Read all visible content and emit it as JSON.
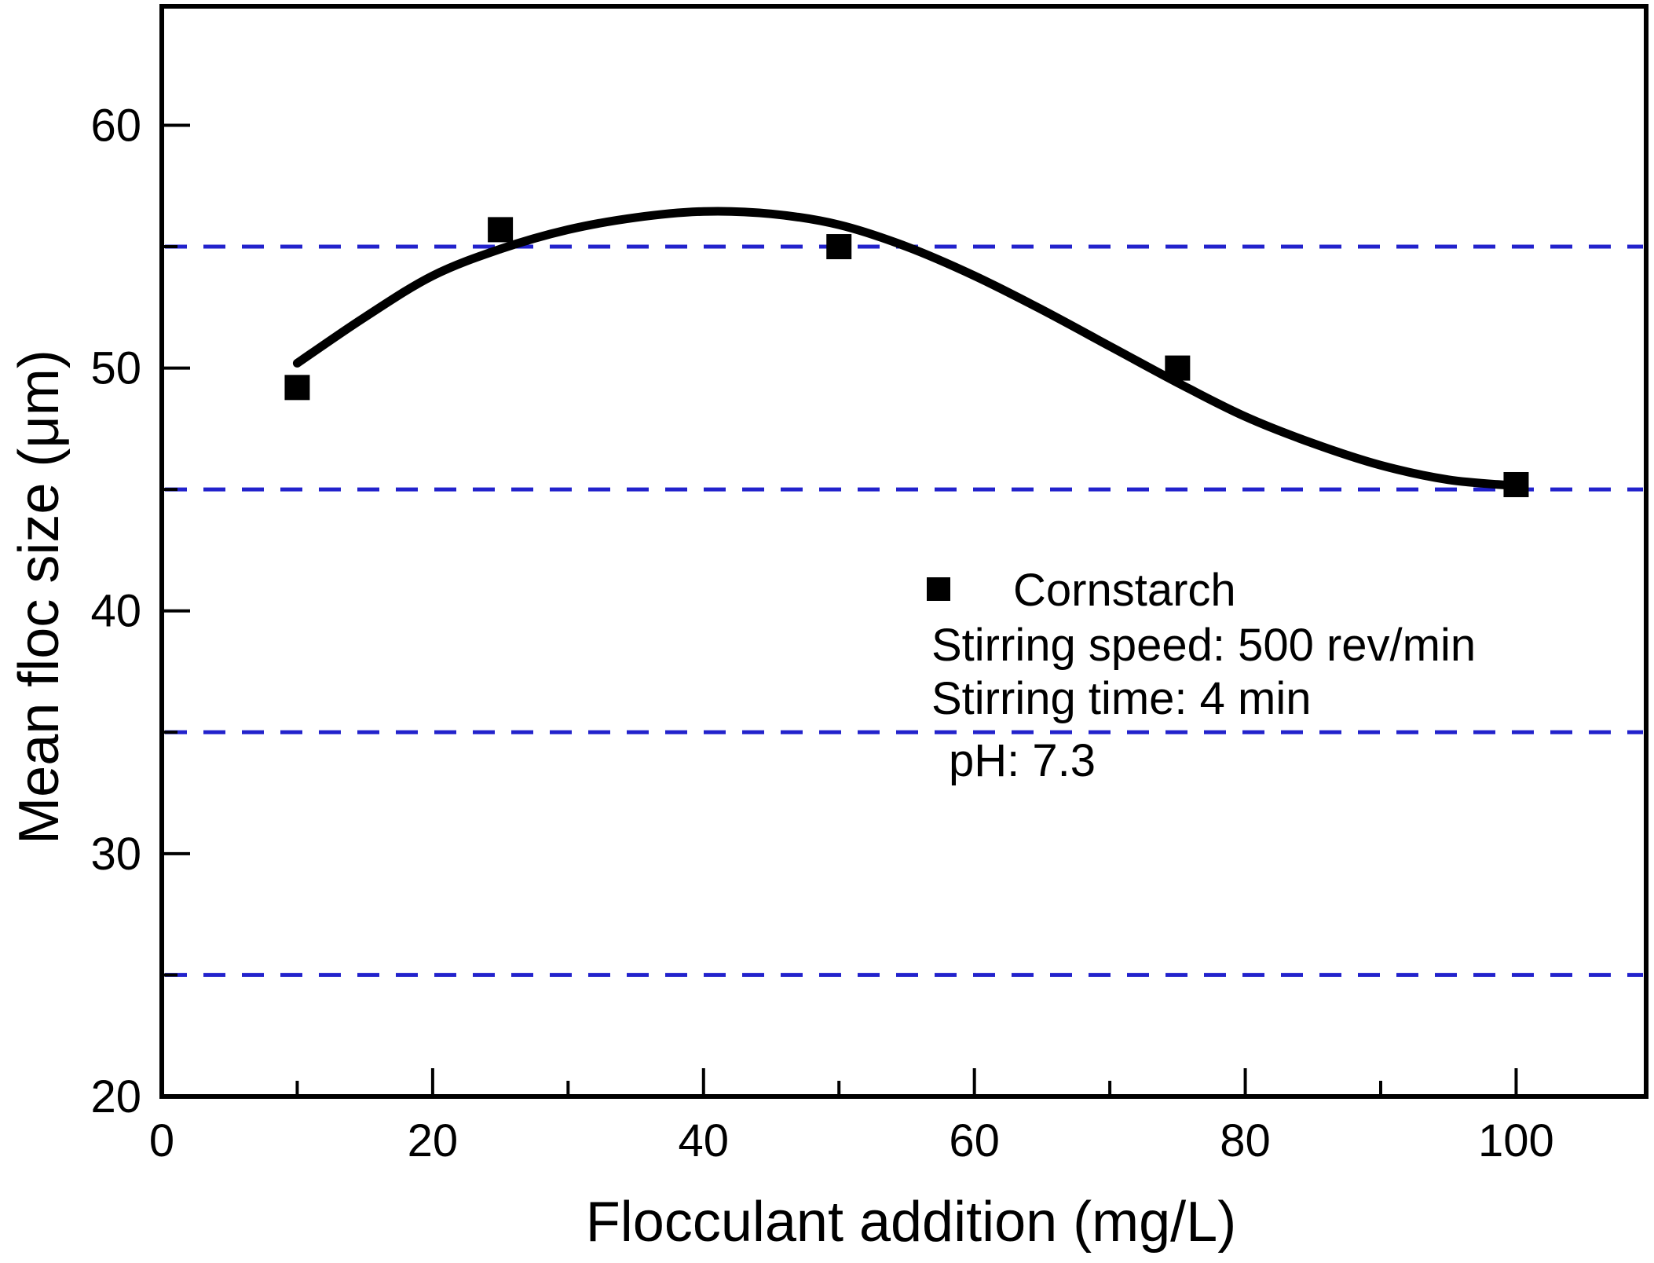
{
  "colors": {
    "axis": "#000000",
    "text": "#000000",
    "curve": "#000000",
    "marker": "#000000",
    "dashed_line": "#2222cc",
    "background": "#ffffff"
  },
  "chart_data": {
    "type": "scatter",
    "title": "",
    "xlabel": "Flocculant addition (mg/L)",
    "ylabel": "Mean floc size (μm)",
    "xlim": [
      0,
      109.6
    ],
    "ylim": [
      20,
      64.9
    ],
    "x_ticks_major": [
      0,
      20,
      40,
      60,
      80,
      100
    ],
    "x_ticks_minor": [
      10,
      30,
      50,
      70,
      90
    ],
    "y_ticks_major": [
      20,
      30,
      40,
      50,
      60
    ],
    "y_ticks_minor": [
      25,
      35,
      45,
      55
    ],
    "reference_lines_y": [
      25,
      35,
      45,
      55
    ],
    "grid": "horizontal blue dashed reference lines at minor y ticks",
    "legend_position": "inside plot, center-right",
    "series": [
      {
        "name": "Cornstarch",
        "marker": "filled-square",
        "points": [
          [
            10,
            49.2
          ],
          [
            25,
            55.7
          ],
          [
            50,
            55.0
          ],
          [
            75,
            50.0
          ],
          [
            100,
            45.2
          ]
        ]
      }
    ],
    "fit_curve": [
      [
        10,
        50.2
      ],
      [
        15,
        52.1
      ],
      [
        20,
        53.8
      ],
      [
        25,
        54.9
      ],
      [
        30,
        55.7
      ],
      [
        35,
        56.2
      ],
      [
        40,
        56.45
      ],
      [
        45,
        56.35
      ],
      [
        50,
        55.9
      ],
      [
        55,
        55.0
      ],
      [
        60,
        53.8
      ],
      [
        65,
        52.4
      ],
      [
        70,
        50.9
      ],
      [
        75,
        49.4
      ],
      [
        80,
        48.0
      ],
      [
        85,
        46.9
      ],
      [
        90,
        46.0
      ],
      [
        95,
        45.4
      ],
      [
        100,
        45.15
      ]
    ],
    "legend": {
      "marker": "filled-square",
      "label": "Cornstarch"
    },
    "annotations": [
      "Stirring speed: 500 rev/min",
      "Stirring time: 4 min",
      "pH: 7.3"
    ]
  }
}
